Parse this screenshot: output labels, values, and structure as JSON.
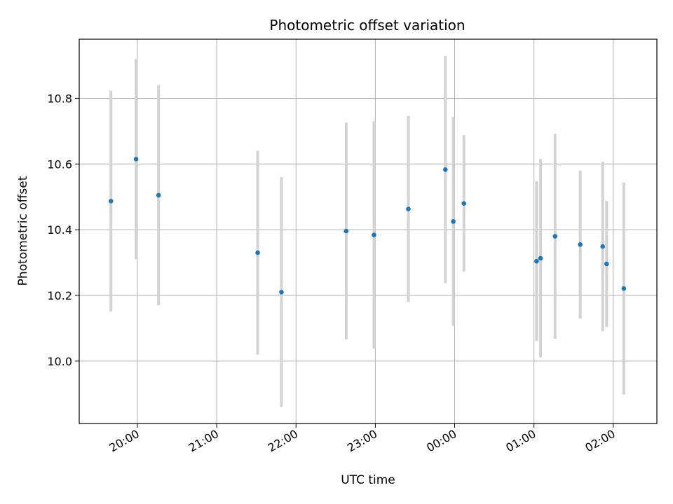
{
  "chart_data": {
    "type": "scatter",
    "title": "Photometric offset variation",
    "xlabel": "UTC time",
    "ylabel": "Photometric offset",
    "grid": true,
    "x_axis": {
      "type": "time",
      "range_min": "19:16",
      "range_max": "02:33",
      "tick_values_min": [
        1200,
        1260,
        1320,
        1380,
        1440,
        1500,
        1560
      ],
      "tick_labels": [
        "20:00",
        "21:00",
        "22:00",
        "23:00",
        "00:00",
        "01:00",
        "02:00"
      ]
    },
    "y_axis": {
      "range": [
        9.81,
        10.98
      ],
      "ticks": [
        10.0,
        10.2,
        10.4,
        10.6,
        10.8
      ],
      "tick_labels": [
        "10.0",
        "10.2",
        "10.4",
        "10.6",
        "10.8"
      ]
    },
    "colors": {
      "point": "#1f77b4",
      "errorbar": "#d3d3d3",
      "grid": "#b0b0b0"
    },
    "series": [
      {
        "x": [
          "19:40",
          "19:59",
          "20:16",
          "21:31",
          "21:49",
          "22:38",
          "22:59",
          "23:25",
          "23:53",
          "23:59",
          "00:07",
          "01:02",
          "01:05",
          "01:16",
          "01:35",
          "01:52",
          "01:55",
          "02:08"
        ],
        "y": [
          10.487,
          10.615,
          10.505,
          10.33,
          10.21,
          10.396,
          10.384,
          10.463,
          10.583,
          10.425,
          10.48,
          10.304,
          10.313,
          10.38,
          10.355,
          10.349,
          10.296,
          10.221
        ],
        "yerr": [
          0.336,
          0.305,
          0.335,
          0.31,
          0.35,
          0.33,
          0.346,
          0.283,
          0.346,
          0.318,
          0.208,
          0.243,
          0.302,
          0.312,
          0.225,
          0.258,
          0.192,
          0.323
        ]
      }
    ]
  }
}
